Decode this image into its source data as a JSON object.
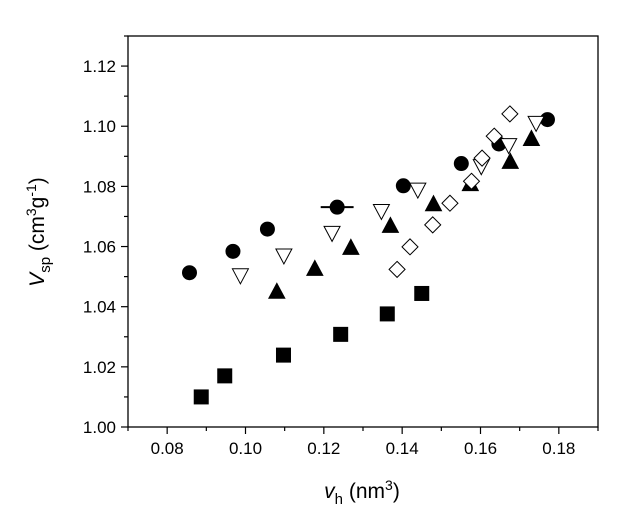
{
  "chart_data": {
    "type": "scatter",
    "title": "",
    "xlabel": {
      "main": "v",
      "sub": "h",
      "unit": " (nm",
      "sup": "3",
      "close": ")"
    },
    "ylabel": {
      "main": "V",
      "sub": "sp",
      "unit": " (cm",
      "sup1": "3",
      "mid": "g",
      "sup2": "-1",
      "close": ")"
    },
    "xlim": [
      0.07,
      0.19
    ],
    "ylim": [
      1.0,
      1.13
    ],
    "xticks": [
      "0.08",
      "0.10",
      "0.12",
      "0.14",
      "0.16",
      "0.18"
    ],
    "xtick_values": [
      0.08,
      0.1,
      0.12,
      0.14,
      0.16,
      0.18
    ],
    "yticks": [
      "1.00",
      "1.02",
      "1.04",
      "1.06",
      "1.08",
      "1.10",
      "1.12"
    ],
    "ytick_values": [
      1.0,
      1.02,
      1.04,
      1.06,
      1.08,
      1.1,
      1.12
    ],
    "grid": false,
    "series": [
      {
        "name": "filled-circles",
        "marker": "circle",
        "filled": true,
        "x": [
          0.0857,
          0.0968,
          0.1056,
          0.1234,
          0.1403,
          0.1551,
          0.1647,
          0.1771
        ],
        "y": [
          1.0513,
          1.0584,
          1.0658,
          1.0731,
          1.0802,
          1.0876,
          1.0941,
          1.1022
        ],
        "xerr": [
          0,
          0,
          0,
          0.0042,
          0,
          0,
          0,
          0
        ]
      },
      {
        "name": "open-down-triangles",
        "marker": "triangle-down",
        "filled": false,
        "x": [
          0.0987,
          0.1098,
          0.1221,
          0.1347,
          0.144,
          0.1602,
          0.1672,
          0.1742
        ],
        "y": [
          1.0506,
          1.0572,
          1.0647,
          1.072,
          1.0791,
          1.0869,
          1.0939,
          1.1013
        ]
      },
      {
        "name": "filled-up-triangles",
        "marker": "triangle-up",
        "filled": true,
        "x": [
          0.108,
          0.1177,
          0.1269,
          0.137,
          0.148,
          0.1574,
          0.1676,
          0.173
        ],
        "y": [
          1.0448,
          1.0524,
          1.0594,
          1.0667,
          1.0739,
          1.0806,
          1.088,
          1.0956
        ]
      },
      {
        "name": "open-diamonds",
        "marker": "diamond",
        "filled": false,
        "x": [
          0.1387,
          0.142,
          0.1478,
          0.1522,
          0.1577,
          0.1604,
          0.1635,
          0.1675
        ],
        "y": [
          1.0524,
          1.0599,
          1.0672,
          1.0744,
          1.0817,
          1.0894,
          1.0967,
          1.1041
        ]
      },
      {
        "name": "filled-squares",
        "marker": "square",
        "filled": true,
        "x": [
          0.0887,
          0.0947,
          0.1097,
          0.1243,
          0.1362,
          0.145
        ],
        "y": [
          1.01,
          1.017,
          1.0239,
          1.0308,
          1.0376,
          1.0444
        ]
      }
    ]
  }
}
